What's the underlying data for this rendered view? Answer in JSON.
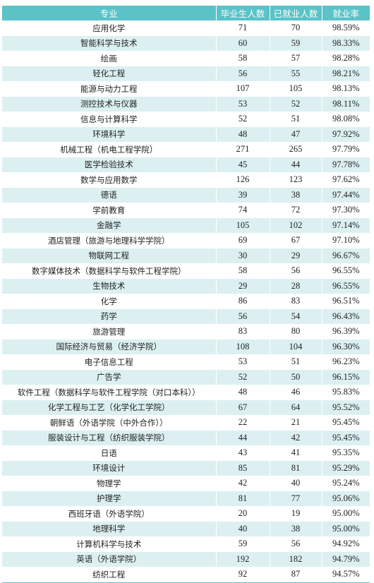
{
  "colors": {
    "header_bg": "#59c3c8",
    "stripe_bg": "#dcf0f2",
    "text": "#222222"
  },
  "table": {
    "headers": [
      "专业",
      "毕业生人数",
      "已就业人数",
      "就业率"
    ],
    "rows": [
      [
        "应用化学",
        "71",
        "70",
        "98.59%"
      ],
      [
        "智能科学与技术",
        "60",
        "59",
        "98.33%"
      ],
      [
        "绘画",
        "58",
        "57",
        "98.28%"
      ],
      [
        "轻化工程",
        "56",
        "55",
        "98.21%"
      ],
      [
        "能源与动力工程",
        "107",
        "105",
        "98.13%"
      ],
      [
        "测控技术与仪器",
        "53",
        "52",
        "98.11%"
      ],
      [
        "信息与计算科学",
        "52",
        "51",
        "98.08%"
      ],
      [
        "环境科学",
        "48",
        "47",
        "97.92%"
      ],
      [
        "机械工程（机电工程学院）",
        "271",
        "265",
        "97.79%"
      ],
      [
        "医学检验技术",
        "45",
        "44",
        "97.78%"
      ],
      [
        "数学与应用数学",
        "126",
        "123",
        "97.62%"
      ],
      [
        "德语",
        "39",
        "38",
        "97.44%"
      ],
      [
        "学前教育",
        "74",
        "72",
        "97.30%"
      ],
      [
        "金融学",
        "105",
        "102",
        "97.14%"
      ],
      [
        "酒店管理（旅游与地理科学学院）",
        "69",
        "67",
        "97.10%"
      ],
      [
        "物联网工程",
        "30",
        "29",
        "96.67%"
      ],
      [
        "数字媒体技术（数据科学与软件工程学院）",
        "58",
        "56",
        "96.55%"
      ],
      [
        "生物技术",
        "29",
        "28",
        "96.55%"
      ],
      [
        "化学",
        "86",
        "83",
        "96.51%"
      ],
      [
        "药学",
        "56",
        "54",
        "96.43%"
      ],
      [
        "旅游管理",
        "83",
        "80",
        "96.39%"
      ],
      [
        "国际经济与贸易（经济学院）",
        "108",
        "104",
        "96.30%"
      ],
      [
        "电子信息工程",
        "53",
        "51",
        "96.23%"
      ],
      [
        "广告学",
        "52",
        "50",
        "96.15%"
      ],
      [
        "软件工程（数据科学与软件工程学院（对口本科））",
        "48",
        "46",
        "95.83%"
      ],
      [
        "化学工程与工艺（化学化工学院）",
        "67",
        "64",
        "95.52%"
      ],
      [
        "朝鲜语（外语学院（中外合作））",
        "22",
        "21",
        "95.45%"
      ],
      [
        "服装设计与工程（纺织服装学院）",
        "44",
        "42",
        "95.45%"
      ],
      [
        "日语",
        "43",
        "41",
        "95.35%"
      ],
      [
        "环境设计",
        "85",
        "81",
        "95.29%"
      ],
      [
        "物理学",
        "42",
        "40",
        "95.24%"
      ],
      [
        "护理学",
        "81",
        "77",
        "95.06%"
      ],
      [
        "西班牙语（外语学院）",
        "20",
        "19",
        "95.00%"
      ],
      [
        "地理科学",
        "40",
        "38",
        "95.00%"
      ],
      [
        "计算机科学与技术",
        "59",
        "56",
        "94.92%"
      ],
      [
        "英语（外语学院）",
        "192",
        "182",
        "94.79%"
      ],
      [
        "纺织工程",
        "92",
        "87",
        "94.57%"
      ]
    ]
  }
}
